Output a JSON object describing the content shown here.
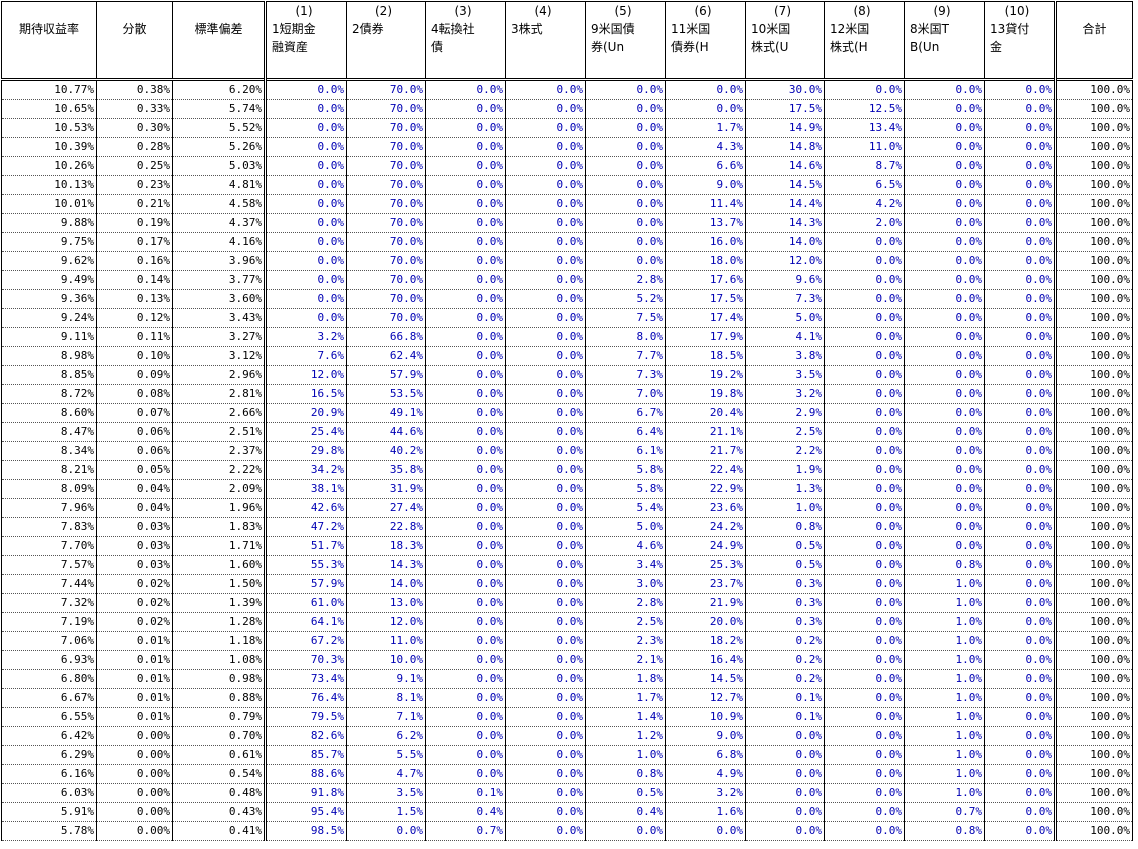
{
  "headers": {
    "stats": [
      "期待収益率",
      "分散",
      "標準偏差"
    ],
    "assets": [
      {
        "num": "(1)",
        "label1": "1短期金",
        "label2": "融資産"
      },
      {
        "num": "(2)",
        "label1": "2債券",
        "label2": ""
      },
      {
        "num": "(3)",
        "label1": "4転換社",
        "label2": "債"
      },
      {
        "num": "(4)",
        "label1": "3株式",
        "label2": ""
      },
      {
        "num": "(5)",
        "label1": "9米国債",
        "label2": "券(Un"
      },
      {
        "num": "(6)",
        "label1": "11米国",
        "label2": "債券(H"
      },
      {
        "num": "(7)",
        "label1": "10米国",
        "label2": "株式(U"
      },
      {
        "num": "(8)",
        "label1": "12米国",
        "label2": "株式(H"
      },
      {
        "num": "(9)",
        "label1": "8米国T",
        "label2": "B(Un"
      },
      {
        "num": "(10)",
        "label1": "13貸付",
        "label2": "金"
      }
    ],
    "total": "合計"
  },
  "rows": [
    [
      "10.77%",
      "0.38%",
      "6.20%",
      "0.0%",
      "70.0%",
      "0.0%",
      "0.0%",
      "0.0%",
      "0.0%",
      "30.0%",
      "0.0%",
      "0.0%",
      "0.0%",
      "100.0%"
    ],
    [
      "10.65%",
      "0.33%",
      "5.74%",
      "0.0%",
      "70.0%",
      "0.0%",
      "0.0%",
      "0.0%",
      "0.0%",
      "17.5%",
      "12.5%",
      "0.0%",
      "0.0%",
      "100.0%"
    ],
    [
      "10.53%",
      "0.30%",
      "5.52%",
      "0.0%",
      "70.0%",
      "0.0%",
      "0.0%",
      "0.0%",
      "1.7%",
      "14.9%",
      "13.4%",
      "0.0%",
      "0.0%",
      "100.0%"
    ],
    [
      "10.39%",
      "0.28%",
      "5.26%",
      "0.0%",
      "70.0%",
      "0.0%",
      "0.0%",
      "0.0%",
      "4.3%",
      "14.8%",
      "11.0%",
      "0.0%",
      "0.0%",
      "100.0%"
    ],
    [
      "10.26%",
      "0.25%",
      "5.03%",
      "0.0%",
      "70.0%",
      "0.0%",
      "0.0%",
      "0.0%",
      "6.6%",
      "14.6%",
      "8.7%",
      "0.0%",
      "0.0%",
      "100.0%"
    ],
    [
      "10.13%",
      "0.23%",
      "4.81%",
      "0.0%",
      "70.0%",
      "0.0%",
      "0.0%",
      "0.0%",
      "9.0%",
      "14.5%",
      "6.5%",
      "0.0%",
      "0.0%",
      "100.0%"
    ],
    [
      "10.01%",
      "0.21%",
      "4.58%",
      "0.0%",
      "70.0%",
      "0.0%",
      "0.0%",
      "0.0%",
      "11.4%",
      "14.4%",
      "4.2%",
      "0.0%",
      "0.0%",
      "100.0%"
    ],
    [
      "9.88%",
      "0.19%",
      "4.37%",
      "0.0%",
      "70.0%",
      "0.0%",
      "0.0%",
      "0.0%",
      "13.7%",
      "14.3%",
      "2.0%",
      "0.0%",
      "0.0%",
      "100.0%"
    ],
    [
      "9.75%",
      "0.17%",
      "4.16%",
      "0.0%",
      "70.0%",
      "0.0%",
      "0.0%",
      "0.0%",
      "16.0%",
      "14.0%",
      "0.0%",
      "0.0%",
      "0.0%",
      "100.0%"
    ],
    [
      "9.62%",
      "0.16%",
      "3.96%",
      "0.0%",
      "70.0%",
      "0.0%",
      "0.0%",
      "0.0%",
      "18.0%",
      "12.0%",
      "0.0%",
      "0.0%",
      "0.0%",
      "100.0%"
    ],
    [
      "9.49%",
      "0.14%",
      "3.77%",
      "0.0%",
      "70.0%",
      "0.0%",
      "0.0%",
      "2.8%",
      "17.6%",
      "9.6%",
      "0.0%",
      "0.0%",
      "0.0%",
      "100.0%"
    ],
    [
      "9.36%",
      "0.13%",
      "3.60%",
      "0.0%",
      "70.0%",
      "0.0%",
      "0.0%",
      "5.2%",
      "17.5%",
      "7.3%",
      "0.0%",
      "0.0%",
      "0.0%",
      "100.0%"
    ],
    [
      "9.24%",
      "0.12%",
      "3.43%",
      "0.0%",
      "70.0%",
      "0.0%",
      "0.0%",
      "7.5%",
      "17.4%",
      "5.0%",
      "0.0%",
      "0.0%",
      "0.0%",
      "100.0%"
    ],
    [
      "9.11%",
      "0.11%",
      "3.27%",
      "3.2%",
      "66.8%",
      "0.0%",
      "0.0%",
      "8.0%",
      "17.9%",
      "4.1%",
      "0.0%",
      "0.0%",
      "0.0%",
      "100.0%"
    ],
    [
      "8.98%",
      "0.10%",
      "3.12%",
      "7.6%",
      "62.4%",
      "0.0%",
      "0.0%",
      "7.7%",
      "18.5%",
      "3.8%",
      "0.0%",
      "0.0%",
      "0.0%",
      "100.0%"
    ],
    [
      "8.85%",
      "0.09%",
      "2.96%",
      "12.0%",
      "57.9%",
      "0.0%",
      "0.0%",
      "7.3%",
      "19.2%",
      "3.5%",
      "0.0%",
      "0.0%",
      "0.0%",
      "100.0%"
    ],
    [
      "8.72%",
      "0.08%",
      "2.81%",
      "16.5%",
      "53.5%",
      "0.0%",
      "0.0%",
      "7.0%",
      "19.8%",
      "3.2%",
      "0.0%",
      "0.0%",
      "0.0%",
      "100.0%"
    ],
    [
      "8.60%",
      "0.07%",
      "2.66%",
      "20.9%",
      "49.1%",
      "0.0%",
      "0.0%",
      "6.7%",
      "20.4%",
      "2.9%",
      "0.0%",
      "0.0%",
      "0.0%",
      "100.0%"
    ],
    [
      "8.47%",
      "0.06%",
      "2.51%",
      "25.4%",
      "44.6%",
      "0.0%",
      "0.0%",
      "6.4%",
      "21.1%",
      "2.5%",
      "0.0%",
      "0.0%",
      "0.0%",
      "100.0%"
    ],
    [
      "8.34%",
      "0.06%",
      "2.37%",
      "29.8%",
      "40.2%",
      "0.0%",
      "0.0%",
      "6.1%",
      "21.7%",
      "2.2%",
      "0.0%",
      "0.0%",
      "0.0%",
      "100.0%"
    ],
    [
      "8.21%",
      "0.05%",
      "2.22%",
      "34.2%",
      "35.8%",
      "0.0%",
      "0.0%",
      "5.8%",
      "22.4%",
      "1.9%",
      "0.0%",
      "0.0%",
      "0.0%",
      "100.0%"
    ],
    [
      "8.09%",
      "0.04%",
      "2.09%",
      "38.1%",
      "31.9%",
      "0.0%",
      "0.0%",
      "5.8%",
      "22.9%",
      "1.3%",
      "0.0%",
      "0.0%",
      "0.0%",
      "100.0%"
    ],
    [
      "7.96%",
      "0.04%",
      "1.96%",
      "42.6%",
      "27.4%",
      "0.0%",
      "0.0%",
      "5.4%",
      "23.6%",
      "1.0%",
      "0.0%",
      "0.0%",
      "0.0%",
      "100.0%"
    ],
    [
      "7.83%",
      "0.03%",
      "1.83%",
      "47.2%",
      "22.8%",
      "0.0%",
      "0.0%",
      "5.0%",
      "24.2%",
      "0.8%",
      "0.0%",
      "0.0%",
      "0.0%",
      "100.0%"
    ],
    [
      "7.70%",
      "0.03%",
      "1.71%",
      "51.7%",
      "18.3%",
      "0.0%",
      "0.0%",
      "4.6%",
      "24.9%",
      "0.5%",
      "0.0%",
      "0.0%",
      "0.0%",
      "100.0%"
    ],
    [
      "7.57%",
      "0.03%",
      "1.60%",
      "55.3%",
      "14.3%",
      "0.0%",
      "0.0%",
      "3.4%",
      "25.3%",
      "0.5%",
      "0.0%",
      "0.8%",
      "0.0%",
      "100.0%"
    ],
    [
      "7.44%",
      "0.02%",
      "1.50%",
      "57.9%",
      "14.0%",
      "0.0%",
      "0.0%",
      "3.0%",
      "23.7%",
      "0.3%",
      "0.0%",
      "1.0%",
      "0.0%",
      "100.0%"
    ],
    [
      "7.32%",
      "0.02%",
      "1.39%",
      "61.0%",
      "13.0%",
      "0.0%",
      "0.0%",
      "2.8%",
      "21.9%",
      "0.3%",
      "0.0%",
      "1.0%",
      "0.0%",
      "100.0%"
    ],
    [
      "7.19%",
      "0.02%",
      "1.28%",
      "64.1%",
      "12.0%",
      "0.0%",
      "0.0%",
      "2.5%",
      "20.0%",
      "0.3%",
      "0.0%",
      "1.0%",
      "0.0%",
      "100.0%"
    ],
    [
      "7.06%",
      "0.01%",
      "1.18%",
      "67.2%",
      "11.0%",
      "0.0%",
      "0.0%",
      "2.3%",
      "18.2%",
      "0.2%",
      "0.0%",
      "1.0%",
      "0.0%",
      "100.0%"
    ],
    [
      "6.93%",
      "0.01%",
      "1.08%",
      "70.3%",
      "10.0%",
      "0.0%",
      "0.0%",
      "2.1%",
      "16.4%",
      "0.2%",
      "0.0%",
      "1.0%",
      "0.0%",
      "100.0%"
    ],
    [
      "6.80%",
      "0.01%",
      "0.98%",
      "73.4%",
      "9.1%",
      "0.0%",
      "0.0%",
      "1.8%",
      "14.5%",
      "0.2%",
      "0.0%",
      "1.0%",
      "0.0%",
      "100.0%"
    ],
    [
      "6.67%",
      "0.01%",
      "0.88%",
      "76.4%",
      "8.1%",
      "0.0%",
      "0.0%",
      "1.7%",
      "12.7%",
      "0.1%",
      "0.0%",
      "1.0%",
      "0.0%",
      "100.0%"
    ],
    [
      "6.55%",
      "0.01%",
      "0.79%",
      "79.5%",
      "7.1%",
      "0.0%",
      "0.0%",
      "1.4%",
      "10.9%",
      "0.1%",
      "0.0%",
      "1.0%",
      "0.0%",
      "100.0%"
    ],
    [
      "6.42%",
      "0.00%",
      "0.70%",
      "82.6%",
      "6.2%",
      "0.0%",
      "0.0%",
      "1.2%",
      "9.0%",
      "0.0%",
      "0.0%",
      "1.0%",
      "0.0%",
      "100.0%"
    ],
    [
      "6.29%",
      "0.00%",
      "0.61%",
      "85.7%",
      "5.5%",
      "0.0%",
      "0.0%",
      "1.0%",
      "6.8%",
      "0.0%",
      "0.0%",
      "1.0%",
      "0.0%",
      "100.0%"
    ],
    [
      "6.16%",
      "0.00%",
      "0.54%",
      "88.6%",
      "4.7%",
      "0.0%",
      "0.0%",
      "0.8%",
      "4.9%",
      "0.0%",
      "0.0%",
      "1.0%",
      "0.0%",
      "100.0%"
    ],
    [
      "6.03%",
      "0.00%",
      "0.48%",
      "91.8%",
      "3.5%",
      "0.1%",
      "0.0%",
      "0.5%",
      "3.2%",
      "0.0%",
      "0.0%",
      "1.0%",
      "0.0%",
      "100.0%"
    ],
    [
      "5.91%",
      "0.00%",
      "0.43%",
      "95.4%",
      "1.5%",
      "0.4%",
      "0.0%",
      "0.4%",
      "1.6%",
      "0.0%",
      "0.0%",
      "0.7%",
      "0.0%",
      "100.0%"
    ],
    [
      "5.78%",
      "0.00%",
      "0.41%",
      "98.5%",
      "0.0%",
      "0.7%",
      "0.0%",
      "0.0%",
      "0.0%",
      "0.0%",
      "0.0%",
      "0.8%",
      "0.0%",
      "100.0%"
    ]
  ]
}
